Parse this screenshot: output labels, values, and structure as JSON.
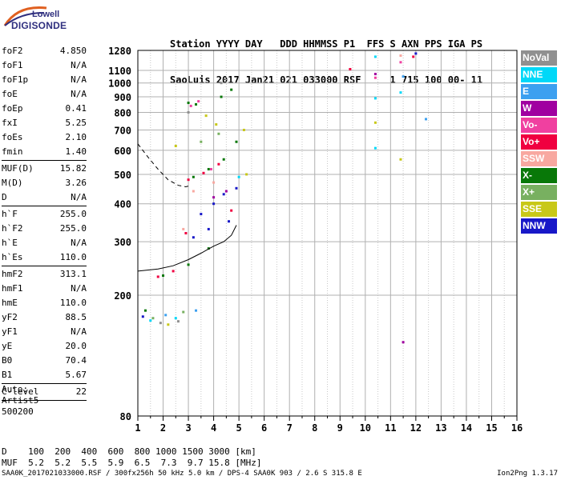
{
  "logo": {
    "line1": "Lowell",
    "line2": "DIGISONDE"
  },
  "header": {
    "row1": "Station YYYY DAY   DDD HHMMSS P1  FFS S AXN PPS IGA PS",
    "row2": "SaoLuis 2017 Jan21 021 033000 RSF     1 715 100 00- 11"
  },
  "params": {
    "group1": [
      {
        "label": "foF2",
        "value": "4.850"
      },
      {
        "label": "foF1",
        "value": "N/A"
      },
      {
        "label": "foF1p",
        "value": "N/A"
      },
      {
        "label": "foE",
        "value": "N/A"
      },
      {
        "label": "foEp",
        "value": "0.41"
      },
      {
        "label": "fxI",
        "value": "5.25"
      },
      {
        "label": "foEs",
        "value": "2.10"
      },
      {
        "label": "fmin",
        "value": "1.40"
      }
    ],
    "group2": [
      {
        "label": "MUF(D)",
        "value": "15.82"
      },
      {
        "label": "M(D)",
        "value": "3.26"
      },
      {
        "label": "D",
        "value": "N/A"
      }
    ],
    "group3": [
      {
        "label": "h`F",
        "value": "255.0"
      },
      {
        "label": "h`F2",
        "value": "255.0"
      },
      {
        "label": "h`E",
        "value": "N/A"
      },
      {
        "label": "h`Es",
        "value": "110.0"
      }
    ],
    "group4": [
      {
        "label": "hmF2",
        "value": "313.1"
      },
      {
        "label": "hmF1",
        "value": "N/A"
      },
      {
        "label": "hmE",
        "value": "110.0"
      },
      {
        "label": "yF2",
        "value": "88.5"
      },
      {
        "label": "yF1",
        "value": "N/A"
      },
      {
        "label": "yE",
        "value": "20.0"
      },
      {
        "label": "B0",
        "value": "70.4"
      },
      {
        "label": "B1",
        "value": "5.67"
      }
    ],
    "group5": [
      {
        "label": "C-level",
        "value": "22"
      }
    ]
  },
  "auto_block": {
    "line1": "Auto:",
    "line2": "Artist5",
    "line3": "500200"
  },
  "legend": [
    {
      "label": "NoVal",
      "color": "#909090"
    },
    {
      "label": "NNE",
      "color": "#00d8f8"
    },
    {
      "label": "E",
      "color": "#3ca0f0"
    },
    {
      "label": "W",
      "color": "#a000a0"
    },
    {
      "label": "Vo-",
      "color": "#f040a0"
    },
    {
      "label": "Vo+",
      "color": "#f00040"
    },
    {
      "label": "SSW",
      "color": "#f8a8a0"
    },
    {
      "label": "X-",
      "color": "#087808"
    },
    {
      "label": "X+",
      "color": "#78b060"
    },
    {
      "label": "SSE",
      "color": "#c8c818"
    },
    {
      "label": "NNW",
      "color": "#1818c8"
    }
  ],
  "muf_table": {
    "row1": "D    100  200  400  600  800 1000 1500 3000 [km]",
    "row2": "MUF  5.2  5.2  5.5  5.9  6.5  7.3  9.7 15.8 [MHz]"
  },
  "footer": "SAA0K_2017021033000.RSF / 300fx256h 50 kHz 5.0 km / DPS-4 SAA0K 903 / 2.6 S 315.8 E",
  "version": "Ion2Png 1.3.17",
  "chart_data": {
    "type": "scatter",
    "xlabel": "",
    "ylabel": "",
    "xlim": [
      1,
      16
    ],
    "ylim": [
      80,
      1280
    ],
    "x_ticks": [
      1,
      2,
      3,
      4,
      5,
      6,
      7,
      8,
      9,
      10,
      11,
      12,
      13,
      14,
      15,
      16
    ],
    "y_ticks": [
      80,
      200,
      300,
      400,
      500,
      600,
      700,
      800,
      900,
      1000,
      1100,
      1280
    ],
    "log_y": true,
    "grid": true,
    "legend_placement": "right",
    "traces": [
      {
        "name": "profile",
        "style": "solid",
        "x": [
          1.0,
          1.8,
          2.4,
          3.0,
          3.5,
          4.0,
          4.4,
          4.7,
          4.9
        ],
        "y": [
          240,
          244,
          250,
          262,
          275,
          290,
          300,
          315,
          340
        ]
      },
      {
        "name": "profile",
        "style": "dashed",
        "x": [
          1.0,
          1.4,
          1.8,
          2.2,
          2.6,
          2.9,
          3.1
        ],
        "y": [
          630,
          570,
          520,
          480,
          460,
          455,
          460
        ]
      }
    ],
    "points": [
      {
        "name": "X-",
        "x": 3.0,
        "y": 860
      },
      {
        "name": "X-",
        "x": 3.3,
        "y": 850
      },
      {
        "name": "X-",
        "x": 4.3,
        "y": 900
      },
      {
        "name": "X-",
        "x": 4.7,
        "y": 950
      },
      {
        "name": "X-",
        "x": 3.2,
        "y": 490
      },
      {
        "name": "X-",
        "x": 3.8,
        "y": 520
      },
      {
        "name": "X-",
        "x": 4.4,
        "y": 560
      },
      {
        "name": "X-",
        "x": 4.9,
        "y": 640
      },
      {
        "name": "X-",
        "x": 2.0,
        "y": 232
      },
      {
        "name": "X-",
        "x": 3.0,
        "y": 252
      },
      {
        "name": "X-",
        "x": 3.8,
        "y": 285
      },
      {
        "name": "X-",
        "x": 1.3,
        "y": 178
      },
      {
        "name": "Vo+",
        "x": 3.0,
        "y": 480
      },
      {
        "name": "Vo+",
        "x": 3.6,
        "y": 505
      },
      {
        "name": "Vo+",
        "x": 4.2,
        "y": 540
      },
      {
        "name": "Vo+",
        "x": 4.7,
        "y": 380
      },
      {
        "name": "Vo+",
        "x": 1.8,
        "y": 230
      },
      {
        "name": "Vo+",
        "x": 2.4,
        "y": 240
      },
      {
        "name": "Vo+",
        "x": 2.9,
        "y": 320
      },
      {
        "name": "Vo+",
        "x": 9.4,
        "y": 1110
      },
      {
        "name": "Vo-",
        "x": 3.1,
        "y": 840
      },
      {
        "name": "Vo-",
        "x": 3.4,
        "y": 870
      },
      {
        "name": "Vo-",
        "x": 3.9,
        "y": 520
      },
      {
        "name": "Vo-",
        "x": 10.4,
        "y": 1040
      },
      {
        "name": "W",
        "x": 4.0,
        "y": 420
      },
      {
        "name": "W",
        "x": 4.5,
        "y": 440
      },
      {
        "name": "W",
        "x": 10.4,
        "y": 1070
      },
      {
        "name": "W",
        "x": 11.5,
        "y": 140
      },
      {
        "name": "NNW",
        "x": 3.5,
        "y": 370
      },
      {
        "name": "NNW",
        "x": 4.0,
        "y": 400
      },
      {
        "name": "NNW",
        "x": 4.4,
        "y": 430
      },
      {
        "name": "NNW",
        "x": 4.9,
        "y": 450
      },
      {
        "name": "NNW",
        "x": 3.2,
        "y": 310
      },
      {
        "name": "NNW",
        "x": 3.8,
        "y": 330
      },
      {
        "name": "NNW",
        "x": 4.6,
        "y": 350
      },
      {
        "name": "NNW",
        "x": 1.2,
        "y": 170
      },
      {
        "name": "NNE",
        "x": 1.5,
        "y": 165
      },
      {
        "name": "NNE",
        "x": 2.5,
        "y": 168
      },
      {
        "name": "NNE",
        "x": 5.0,
        "y": 490
      },
      {
        "name": "NNE",
        "x": 10.4,
        "y": 890
      },
      {
        "name": "E",
        "x": 2.1,
        "y": 172
      },
      {
        "name": "E",
        "x": 3.3,
        "y": 178
      },
      {
        "name": "E",
        "x": 11.5,
        "y": 1050
      },
      {
        "name": "E",
        "x": 12.4,
        "y": 760
      },
      {
        "name": "SSE",
        "x": 3.7,
        "y": 780
      },
      {
        "name": "SSE",
        "x": 4.1,
        "y": 730
      },
      {
        "name": "SSE",
        "x": 5.2,
        "y": 700
      },
      {
        "name": "SSE",
        "x": 10.4,
        "y": 740
      },
      {
        "name": "SSE",
        "x": 2.5,
        "y": 620
      },
      {
        "name": "SSE",
        "x": 2.2,
        "y": 160
      },
      {
        "name": "SSE",
        "x": 11.4,
        "y": 560
      },
      {
        "name": "SSE",
        "x": 5.3,
        "y": 500
      },
      {
        "name": "X+",
        "x": 3.5,
        "y": 640
      },
      {
        "name": "X+",
        "x": 4.2,
        "y": 680
      },
      {
        "name": "X+",
        "x": 1.6,
        "y": 168
      },
      {
        "name": "X+",
        "x": 2.8,
        "y": 176
      },
      {
        "name": "SSW",
        "x": 3.2,
        "y": 440
      },
      {
        "name": "SSW",
        "x": 4.0,
        "y": 470
      },
      {
        "name": "SSW",
        "x": 11.4,
        "y": 1230
      },
      {
        "name": "SSW",
        "x": 2.8,
        "y": 330
      },
      {
        "name": "NoVal",
        "x": 1.9,
        "y": 162
      },
      {
        "name": "NoVal",
        "x": 2.6,
        "y": 164
      },
      {
        "name": "NoVal",
        "x": 4.3,
        "y": 1000
      },
      {
        "name": "NoVal",
        "x": 3.0,
        "y": 800
      },
      {
        "name": "NNW",
        "x": 12.0,
        "y": 1250
      },
      {
        "name": "NNE",
        "x": 10.4,
        "y": 1220
      },
      {
        "name": "Vo+",
        "x": 11.9,
        "y": 1220
      },
      {
        "name": "NNE",
        "x": 10.4,
        "y": 610
      },
      {
        "name": "NNE",
        "x": 11.4,
        "y": 930
      },
      {
        "name": "Vo-",
        "x": 11.4,
        "y": 1170
      }
    ]
  }
}
